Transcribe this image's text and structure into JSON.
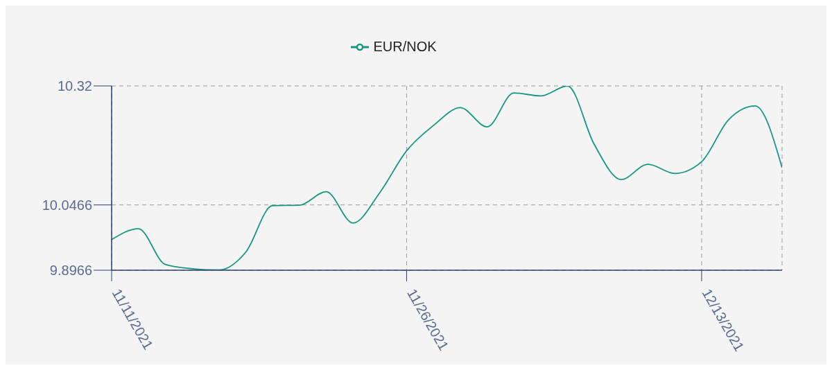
{
  "chart_data": {
    "type": "line",
    "categories": [
      "11/11/2021",
      null,
      null,
      null,
      null,
      null,
      null,
      null,
      null,
      null,
      null,
      "11/26/2021",
      null,
      null,
      null,
      null,
      null,
      null,
      null,
      null,
      null,
      null,
      "12/13/2021",
      null,
      null,
      null
    ],
    "series": [
      {
        "name": "EUR/NOK",
        "color": "#16967f",
        "values": [
          9.967,
          9.992,
          9.91,
          9.9,
          9.897,
          9.938,
          10.045,
          10.046,
          10.077,
          10.005,
          10.075,
          10.171,
          10.229,
          10.27,
          10.226,
          10.304,
          10.297,
          10.32,
          10.185,
          10.105,
          10.14,
          10.119,
          10.146,
          10.242,
          10.274,
          10.132
        ]
      }
    ],
    "ylim": [
      9.8966,
      10.32
    ],
    "yticks": [
      9.8966,
      10.0466,
      10.32
    ],
    "grid": true,
    "legend": "top",
    "line_style": "solid"
  }
}
